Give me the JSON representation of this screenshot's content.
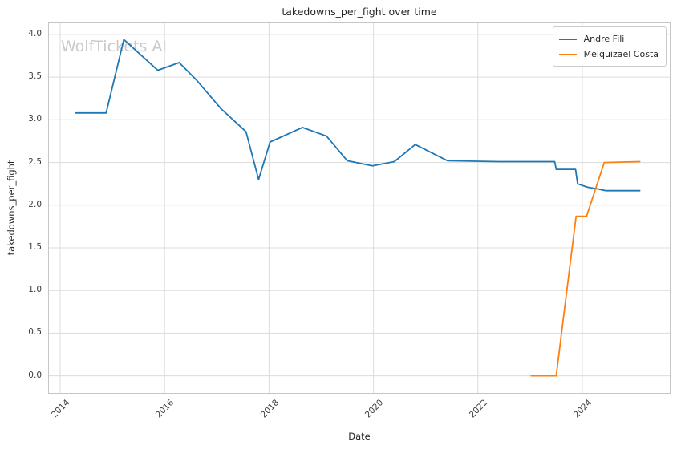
{
  "watermark": "WolfTickets AI",
  "chart_data": {
    "type": "line",
    "title": "takedowns_per_fight over time",
    "xlabel": "Date",
    "ylabel": "takedowns_per_fight",
    "xlim": [
      2013.77,
      2025.69
    ],
    "ylim": [
      -0.21,
      4.14
    ],
    "x_ticks": [
      2014,
      2016,
      2018,
      2020,
      2022,
      2024
    ],
    "y_ticks": [
      0.0,
      0.5,
      1.0,
      1.5,
      2.0,
      2.5,
      3.0,
      3.5,
      4.0
    ],
    "grid": true,
    "legend_position": "upper right",
    "series": [
      {
        "name": "Andre Fili",
        "color": "#1f77b4",
        "points": [
          [
            2014.3,
            3.08
          ],
          [
            2014.88,
            3.08
          ],
          [
            2015.22,
            3.94
          ],
          [
            2015.87,
            3.58
          ],
          [
            2016.28,
            3.67
          ],
          [
            2016.62,
            3.46
          ],
          [
            2017.08,
            3.13
          ],
          [
            2017.56,
            2.86
          ],
          [
            2017.8,
            2.3
          ],
          [
            2018.02,
            2.74
          ],
          [
            2018.64,
            2.91
          ],
          [
            2019.1,
            2.81
          ],
          [
            2019.5,
            2.52
          ],
          [
            2019.98,
            2.46
          ],
          [
            2020.4,
            2.51
          ],
          [
            2020.8,
            2.71
          ],
          [
            2021.42,
            2.52
          ],
          [
            2022.4,
            2.51
          ],
          [
            2023.47,
            2.51
          ],
          [
            2023.5,
            2.42
          ],
          [
            2023.87,
            2.42
          ],
          [
            2023.91,
            2.25
          ],
          [
            2024.1,
            2.21
          ],
          [
            2024.3,
            2.19
          ],
          [
            2024.45,
            2.17
          ],
          [
            2025.1,
            2.17
          ]
        ]
      },
      {
        "name": "Melquizael Costa",
        "color": "#ff7f0e",
        "points": [
          [
            2023.02,
            0.0
          ],
          [
            2023.5,
            0.0
          ],
          [
            2023.88,
            1.87
          ],
          [
            2024.08,
            1.87
          ],
          [
            2024.42,
            2.5
          ],
          [
            2025.1,
            2.51
          ]
        ]
      }
    ]
  },
  "colors": {
    "grid": "#dcdcdc",
    "plot_border": "#c6c6c6",
    "title_text": "#262626",
    "tick_text": "#3d3d3d",
    "watermark": "#c9c9c9"
  }
}
